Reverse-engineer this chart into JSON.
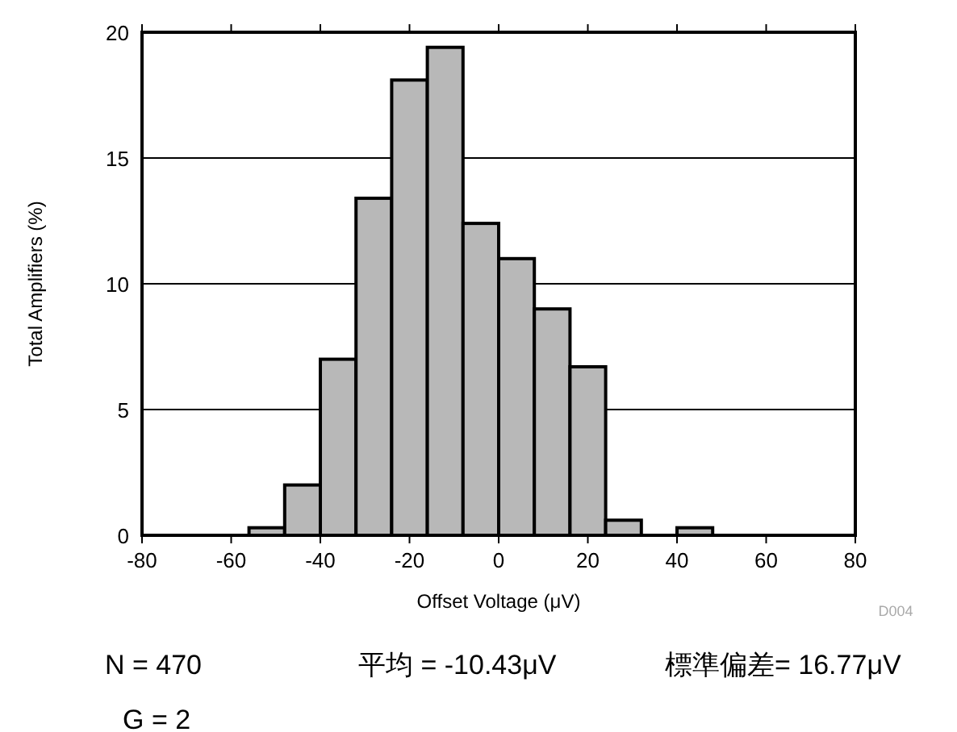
{
  "chart_data": {
    "type": "histogram",
    "xlabel": "Offset Voltage (μV)",
    "ylabel": "Total Amplifiers (%)",
    "bins": [
      -56,
      -48,
      -40,
      -32,
      -24,
      -16,
      -8,
      0,
      8,
      16,
      24,
      32,
      40,
      48
    ],
    "values": [
      0.3,
      2.0,
      7.0,
      13.4,
      18.1,
      19.4,
      12.4,
      11.0,
      9.0,
      6.7,
      0.6,
      0,
      0.3
    ],
    "color": "#b8b8b8",
    "xlim": [
      -80,
      80
    ],
    "xticks": [
      -80,
      -60,
      -40,
      -20,
      0,
      20,
      40,
      60,
      80
    ],
    "ylim": [
      0,
      20
    ],
    "yticks": [
      0,
      5,
      10,
      15,
      20
    ],
    "grid": "y",
    "annotations": [
      "D004",
      "N = 470",
      "平均 = -10.43μV",
      "標準偏差= 16.77μV",
      "G = 2"
    ]
  }
}
